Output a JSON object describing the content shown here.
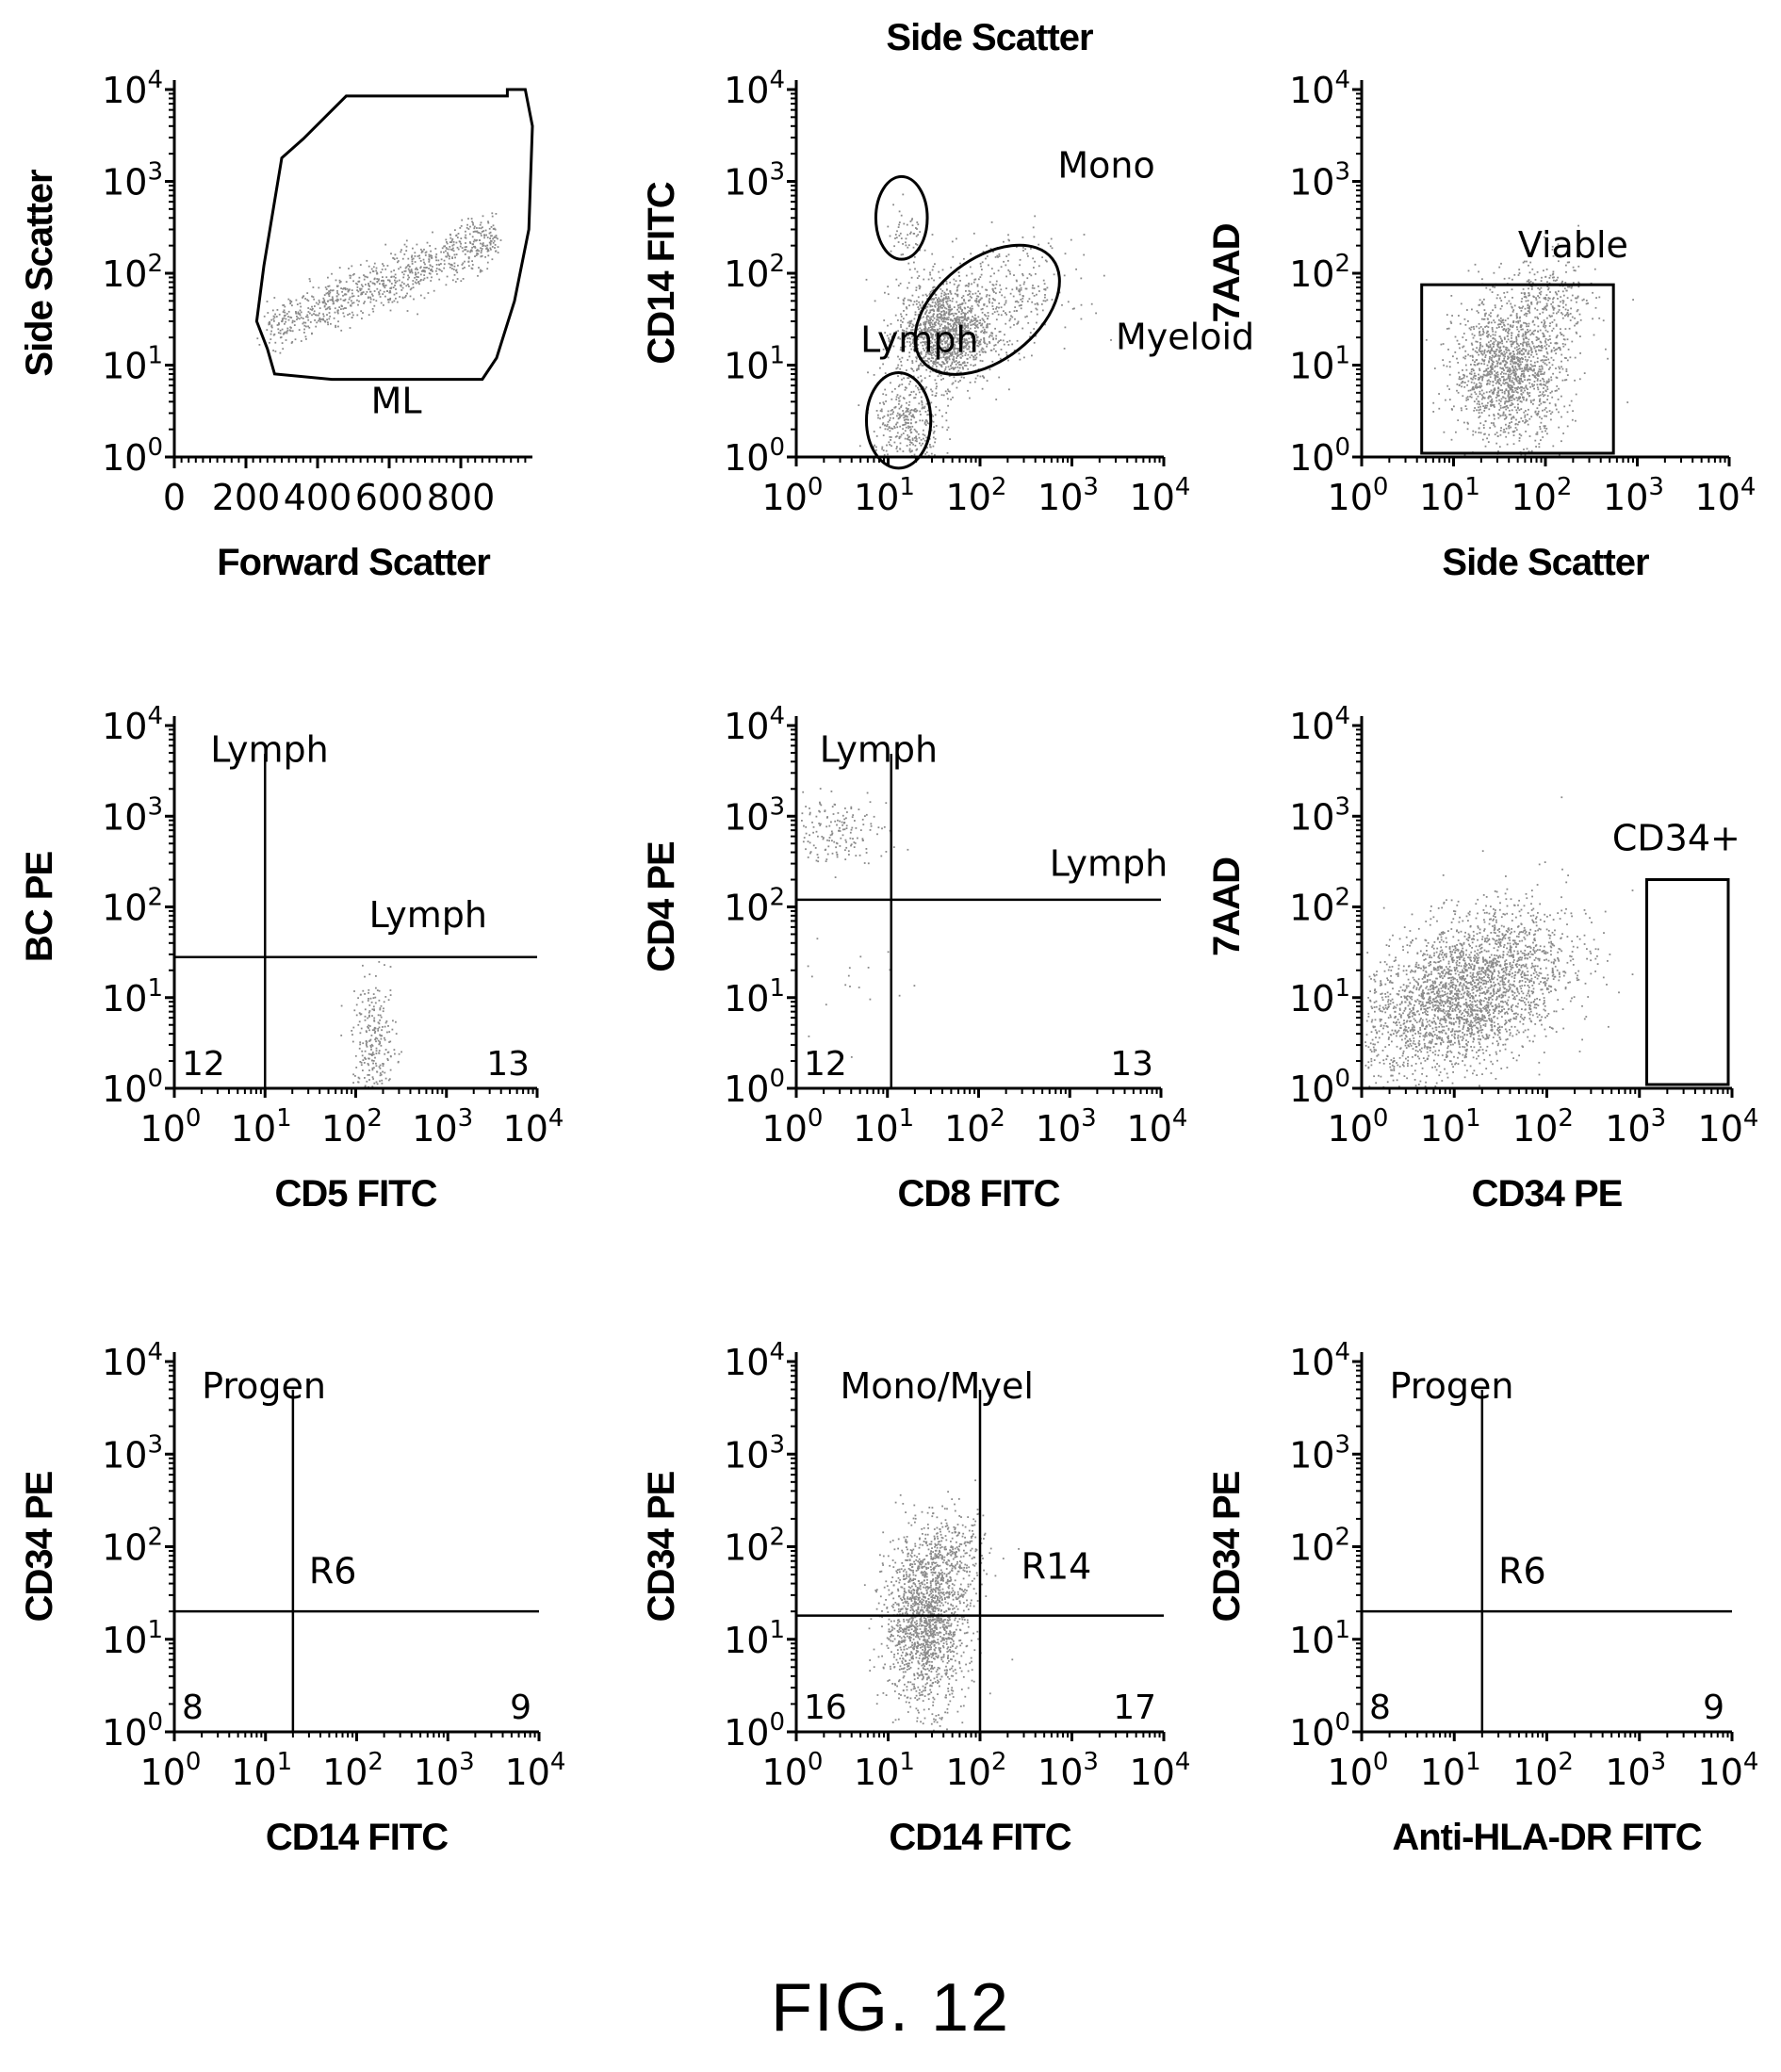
{
  "figure_caption": "FIG. 12",
  "chart_data": [
    {
      "type": "scatter",
      "id": "p1",
      "xlabel": "Forward Scatter",
      "ylabel": "Side Scatter",
      "x_scale": "linear",
      "y_scale": "log",
      "xlim": [
        0,
        1000
      ],
      "ylim": [
        1,
        10000
      ],
      "x_ticks": [
        "0",
        "200",
        "400",
        "600",
        "800"
      ],
      "x_tick_values": [
        0,
        200,
        400,
        600,
        800
      ],
      "gates": [
        {
          "type": "polygon",
          "label": "ML",
          "points": [
            [
              280,
              8
            ],
            [
              260,
              15
            ],
            [
              230,
              30
            ],
            [
              240,
              60
            ],
            [
              250,
              120
            ],
            [
              300,
              1800
            ],
            [
              360,
              2900
            ],
            [
              480,
              8500
            ],
            [
              930,
              8500
            ],
            [
              930,
              10000
            ],
            [
              980,
              10000
            ],
            [
              1000,
              4000
            ],
            [
              990,
              300
            ],
            [
              950,
              50
            ],
            [
              900,
              12
            ],
            [
              860,
              7
            ],
            [
              440,
              7
            ]
          ],
          "label_at": [
            620,
            3
          ]
        }
      ],
      "populations": [
        {
          "x_range": [
            260,
            900
          ],
          "y_log_center": [
            1.4,
            2.4
          ],
          "count": 900,
          "kind": "diagonal"
        }
      ]
    },
    {
      "type": "scatter",
      "id": "p2",
      "title": "Side Scatter",
      "xlabel": "",
      "ylabel": "CD14 FITC",
      "x_scale": "log",
      "y_scale": "log",
      "xlim": [
        1,
        10000
      ],
      "ylim": [
        1,
        10000
      ],
      "gates": [
        {
          "type": "ellipse",
          "label": "Mono",
          "center": [
            14,
            400
          ],
          "rx_dec": 0.28,
          "ry_dec": 0.45,
          "label_at": [
            700,
            1100
          ]
        },
        {
          "type": "ellipse",
          "label": "Myeloid",
          "center": [
            120,
            40
          ],
          "rx_dec": 0.9,
          "ry_dec": 0.55,
          "rot": -38,
          "label_at": [
            3000,
            15
          ]
        },
        {
          "type": "ellipse",
          "label": "Lymph",
          "center": [
            13,
            2.5
          ],
          "rx_dec": 0.35,
          "ry_dec": 0.52,
          "label_at": [
            5,
            14
          ]
        }
      ],
      "populations": [
        {
          "x_log": [
            1.6,
            0.25
          ],
          "y_log": [
            1.35,
            0.28
          ],
          "count": 1400
        },
        {
          "x_log": [
            1.2,
            0.18
          ],
          "y_log": [
            0.35,
            0.25
          ],
          "count": 350
        },
        {
          "x_log": [
            1.2,
            0.12
          ],
          "y_log": [
            2.35,
            0.2
          ],
          "count": 60
        },
        {
          "x_log": [
            2.3,
            0.35
          ],
          "y_log": [
            1.8,
            0.3
          ],
          "count": 300
        }
      ]
    },
    {
      "type": "scatter",
      "id": "p3",
      "xlabel": "Side Scatter",
      "ylabel": "7AAD",
      "x_scale": "log",
      "y_scale": "log",
      "xlim": [
        1,
        10000
      ],
      "ylim": [
        1,
        10000
      ],
      "gates": [
        {
          "type": "rect",
          "label": "Viable",
          "x": [
            4.5,
            550
          ],
          "y": [
            1,
            75
          ],
          "label_at": [
            200,
            150
          ]
        }
      ],
      "populations": [
        {
          "x_log": [
            1.6,
            0.3
          ],
          "y_log": [
            0.95,
            0.38
          ],
          "count": 1500
        },
        {
          "x_log": [
            2.05,
            0.25
          ],
          "y_log": [
            1.7,
            0.25
          ],
          "count": 250
        }
      ]
    },
    {
      "type": "scatter",
      "id": "p4",
      "xlabel": "CD5 FITC",
      "ylabel": "BC PE",
      "x_scale": "log",
      "y_scale": "log",
      "xlim": [
        1,
        10000
      ],
      "ylim": [
        1,
        10000
      ],
      "gates": [
        {
          "type": "quad",
          "x": 10,
          "y": 28,
          "label": "Lymph",
          "label_at": [
            2.5,
            4000
          ],
          "label2": "Lymph",
          "label2_at": [
            140,
            60
          ],
          "ll": "12",
          "lr": "13"
        }
      ],
      "populations": [
        {
          "x_log": [
            2.2,
            0.12
          ],
          "y_log": [
            0.5,
            0.35
          ],
          "count": 260
        }
      ]
    },
    {
      "type": "scatter",
      "id": "p5",
      "xlabel": "CD8 FITC",
      "ylabel": "CD4 PE",
      "x_scale": "log",
      "y_scale": "log",
      "xlim": [
        1,
        10000
      ],
      "ylim": [
        1,
        10000
      ],
      "gates": [
        {
          "type": "quad",
          "x": 11,
          "y": 120,
          "label": "Lymph",
          "label_at": [
            1.8,
            4000
          ],
          "label2": "Lymph",
          "label2_at": [
            600,
            220
          ],
          "ll": "12",
          "lr": "13"
        }
      ],
      "populations": [
        {
          "x_log": [
            0.4,
            0.3
          ],
          "y_log": [
            2.85,
            0.18
          ],
          "count": 180
        },
        {
          "x_log": [
            0.5,
            0.3
          ],
          "y_log": [
            1.2,
            0.6
          ],
          "count": 20
        }
      ]
    },
    {
      "type": "scatter",
      "id": "p6",
      "xlabel": "CD34 PE",
      "ylabel": "7AAD",
      "x_scale": "log",
      "y_scale": "log",
      "xlim": [
        1,
        10000
      ],
      "ylim": [
        1,
        10000
      ],
      "gates": [
        {
          "type": "rect",
          "label": "CD34+",
          "x": [
            1200,
            10000
          ],
          "y": [
            1,
            200
          ],
          "label_at": [
            2500,
            420
          ]
        }
      ],
      "populations": [
        {
          "x_log": [
            1.1,
            0.55
          ],
          "y_log": [
            1.05,
            0.42
          ],
          "count": 2800,
          "kind": "diagonal"
        }
      ]
    },
    {
      "type": "scatter",
      "id": "p7",
      "xlabel": "CD14 FITC",
      "ylabel": "CD34 PE",
      "x_scale": "log",
      "y_scale": "log",
      "xlim": [
        1,
        10000
      ],
      "ylim": [
        1,
        10000
      ],
      "gates": [
        {
          "type": "quad",
          "x": 20,
          "y": 20,
          "label": "Progen",
          "label_at": [
            2,
            4000
          ],
          "label2": "R6",
          "label2_at": [
            30,
            40
          ],
          "ll": "8",
          "lr": "9"
        }
      ],
      "populations": []
    },
    {
      "type": "scatter",
      "id": "p8",
      "xlabel": "CD14 FITC",
      "ylabel": "CD34 PE",
      "x_scale": "log",
      "y_scale": "log",
      "xlim": [
        1,
        10000
      ],
      "ylim": [
        1,
        10000
      ],
      "gates": [
        {
          "type": "quad",
          "x": 100,
          "y": 18,
          "label": "Mono/Myel",
          "label_at": [
            3,
            4000
          ],
          "label2": "R14",
          "label2_at": [
            280,
            45
          ],
          "ll": "16",
          "lr": "17"
        }
      ],
      "populations": [
        {
          "x_log": [
            1.4,
            0.22
          ],
          "y_log": [
            1.2,
            0.45
          ],
          "count": 1600
        },
        {
          "x_log": [
            1.7,
            0.2
          ],
          "y_log": [
            1.9,
            0.25
          ],
          "count": 250
        }
      ]
    },
    {
      "type": "scatter",
      "id": "p9",
      "xlabel": "Anti-HLA-DR FITC",
      "ylabel": "CD34 PE",
      "x_scale": "log",
      "y_scale": "log",
      "xlim": [
        1,
        10000
      ],
      "ylim": [
        1,
        10000
      ],
      "gates": [
        {
          "type": "quad",
          "x": 20,
          "y": 20,
          "label": "Progen",
          "label_at": [
            2,
            4000
          ],
          "label2": "R6",
          "label2_at": [
            30,
            40
          ],
          "ll": "8",
          "lr": "9"
        }
      ],
      "populations": []
    }
  ]
}
